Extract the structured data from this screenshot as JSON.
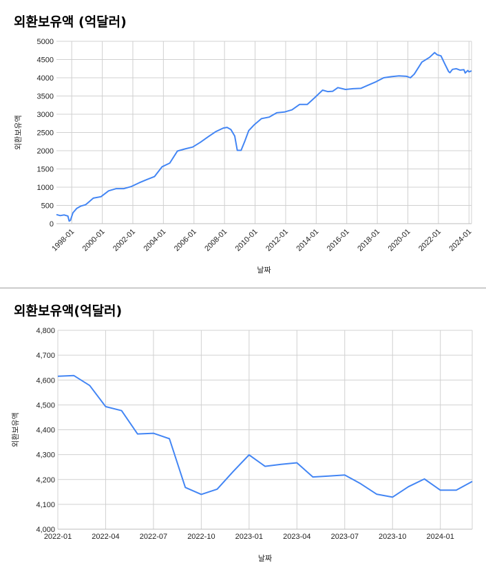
{
  "chart_data": [
    {
      "type": "line",
      "title": "외환보유액 (억달러)",
      "xlabel": "날짜",
      "ylabel": "외환보유액",
      "ylim": [
        0,
        5000
      ],
      "yticks": [
        0,
        500,
        1000,
        1500,
        2000,
        2500,
        3000,
        3500,
        4000,
        4500,
        5000
      ],
      "xticks": [
        "1998-01",
        "2000-01",
        "2002-01",
        "2004-01",
        "2006-01",
        "2008-01",
        "2010-01",
        "2012-01",
        "2014-01",
        "2016-01",
        "2018-01",
        "2020-01",
        "2022-01",
        "2024-01"
      ],
      "x_start": "1997-01",
      "x_end": "2024-03",
      "grid": true,
      "color": "#4285f4",
      "series": [
        {
          "x": [
            "1997-01",
            "1997-04",
            "1997-07",
            "1997-10",
            "1997-11",
            "1997-12",
            "1998-02",
            "1998-05",
            "1998-08",
            "1998-12",
            "1999-06",
            "1999-12",
            "2000-06",
            "2000-12",
            "2001-06",
            "2001-12",
            "2002-06",
            "2002-12",
            "2003-06",
            "2003-12",
            "2004-06",
            "2004-12",
            "2005-06",
            "2005-12",
            "2006-06",
            "2006-12",
            "2007-06",
            "2007-12",
            "2008-03",
            "2008-06",
            "2008-09",
            "2008-11",
            "2009-02",
            "2009-05",
            "2009-08",
            "2009-12",
            "2010-06",
            "2010-12",
            "2011-06",
            "2011-12",
            "2012-06",
            "2012-12",
            "2013-06",
            "2013-12",
            "2014-06",
            "2014-10",
            "2015-02",
            "2015-06",
            "2015-12",
            "2016-06",
            "2016-12",
            "2017-06",
            "2017-12",
            "2018-06",
            "2018-12",
            "2019-06",
            "2019-12",
            "2020-03",
            "2020-06",
            "2020-12",
            "2021-06",
            "2021-10",
            "2021-12",
            "2022-03",
            "2022-06",
            "2022-09",
            "2022-10",
            "2022-12",
            "2023-03",
            "2023-06",
            "2023-09",
            "2023-10",
            "2023-12",
            "2024-01",
            "2024-03"
          ],
          "values": [
            250,
            220,
            240,
            210,
            70,
            90,
            300,
            420,
            480,
            520,
            700,
            740,
            900,
            960,
            960,
            1020,
            1120,
            1210,
            1290,
            1560,
            1660,
            1990,
            2050,
            2100,
            2230,
            2380,
            2520,
            2620,
            2640,
            2580,
            2400,
            2010,
            2010,
            2270,
            2550,
            2700,
            2880,
            2920,
            3040,
            3060,
            3120,
            3270,
            3270,
            3460,
            3660,
            3620,
            3630,
            3730,
            3680,
            3700,
            3710,
            3800,
            3890,
            4000,
            4030,
            4050,
            4040,
            4000,
            4100,
            4430,
            4560,
            4690,
            4630,
            4600,
            4380,
            4170,
            4140,
            4230,
            4250,
            4210,
            4220,
            4130,
            4200,
            4160,
            4190
          ]
        }
      ]
    },
    {
      "type": "line",
      "title": "외환보유액(억달러)",
      "xlabel": "날짜",
      "ylabel": "외환보유액",
      "ylim": [
        4000,
        4800
      ],
      "yticks": [
        "4,000",
        "4,100",
        "4,200",
        "4,300",
        "4,400",
        "4,500",
        "4,600",
        "4,700",
        "4,800"
      ],
      "xticks": [
        "2022-01",
        "2022-04",
        "2022-07",
        "2022-10",
        "2023-01",
        "2023-04",
        "2023-07",
        "2023-10",
        "2024-01"
      ],
      "x_start": "2022-01",
      "x_end": "2024-03",
      "grid": true,
      "color": "#4285f4",
      "series": [
        {
          "x": [
            "2022-01",
            "2022-02",
            "2022-03",
            "2022-04",
            "2022-05",
            "2022-06",
            "2022-07",
            "2022-08",
            "2022-09",
            "2022-10",
            "2022-11",
            "2022-12",
            "2023-01",
            "2023-02",
            "2023-03",
            "2023-04",
            "2023-05",
            "2023-06",
            "2023-07",
            "2023-08",
            "2023-09",
            "2023-10",
            "2023-11",
            "2023-12",
            "2024-01",
            "2024-02",
            "2024-03"
          ],
          "values": [
            4615,
            4618,
            4578,
            4493,
            4477,
            4383,
            4386,
            4364,
            4168,
            4140,
            4161,
            4232,
            4299,
            4253,
            4261,
            4267,
            4210,
            4214,
            4218,
            4183,
            4141,
            4129,
            4171,
            4202,
            4157,
            4157,
            4192
          ]
        }
      ]
    }
  ]
}
